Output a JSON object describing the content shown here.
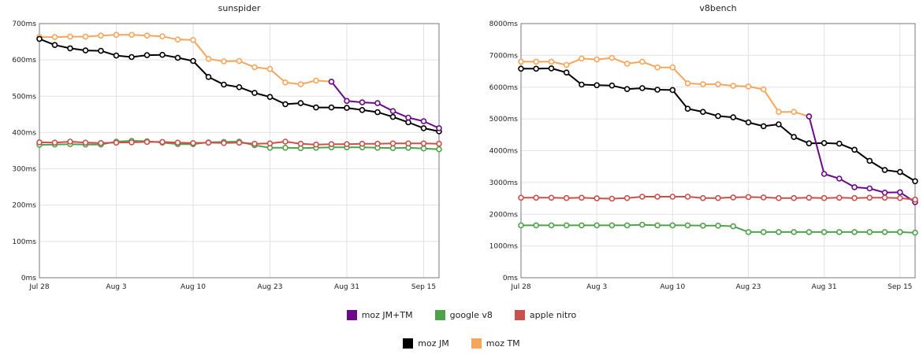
{
  "chart_data": [
    {
      "type": "line",
      "title": "sunspider",
      "xlabel": "",
      "ylabel": "",
      "ylim": [
        0,
        700
      ],
      "yticks": [
        "0ms",
        "100ms",
        "200ms",
        "300ms",
        "400ms",
        "500ms",
        "600ms",
        "700ms"
      ],
      "xticks": [
        "Jul 28",
        "Aug 3",
        "Aug 10",
        "Aug 23",
        "Aug 31",
        "Sep 15"
      ],
      "xtick_index": [
        0,
        5,
        10,
        15,
        20,
        25
      ],
      "n_points": 27,
      "grid": true,
      "series": [
        {
          "name": "moz TM",
          "color": "#f5a65b",
          "start": 0,
          "values": [
            663,
            663,
            664,
            664,
            667,
            669,
            669,
            667,
            665,
            656,
            655,
            603,
            596,
            597,
            580,
            575,
            538,
            533,
            543,
            540
          ]
        },
        {
          "name": "moz JM",
          "color": "#000000",
          "start": 0,
          "values": [
            658,
            641,
            632,
            626,
            625,
            612,
            608,
            613,
            614,
            606,
            597,
            553,
            532,
            525,
            509,
            498,
            478,
            481,
            469,
            469,
            468,
            462,
            456,
            443,
            428,
            412,
            403
          ]
        },
        {
          "name": "moz JM+TM",
          "color": "#6a0a8a",
          "start": 19,
          "values": [
            540,
            487,
            483,
            481,
            459,
            441,
            431,
            412
          ]
        },
        {
          "name": "google v8",
          "color": "#4ea34a",
          "start": 0,
          "values": [
            366,
            367,
            368,
            367,
            367,
            375,
            377,
            376,
            372,
            368,
            368,
            373,
            374,
            375,
            365,
            358,
            358,
            357,
            358,
            359,
            359,
            359,
            358,
            357,
            358,
            356,
            354
          ]
        },
        {
          "name": "apple nitro",
          "color": "#c9504c",
          "start": 0,
          "values": [
            373,
            372,
            375,
            372,
            371,
            372,
            373,
            374,
            374,
            372,
            371,
            372,
            371,
            372,
            369,
            370,
            375,
            369,
            367,
            368,
            368,
            369,
            369,
            370,
            370,
            370,
            369
          ]
        }
      ]
    },
    {
      "type": "line",
      "title": "v8bench",
      "xlabel": "",
      "ylabel": "",
      "ylim": [
        0,
        8000
      ],
      "yticks": [
        "0ms",
        "1000ms",
        "2000ms",
        "3000ms",
        "4000ms",
        "5000ms",
        "6000ms",
        "7000ms",
        "8000ms"
      ],
      "xticks": [
        "Jul 28",
        "Aug 3",
        "Aug 10",
        "Aug 23",
        "Aug 31",
        "Sep 15"
      ],
      "xtick_index": [
        0,
        5,
        10,
        15,
        20,
        25
      ],
      "n_points": 27,
      "grid": true,
      "series": [
        {
          "name": "moz TM",
          "color": "#f5a65b",
          "start": 0,
          "values": [
            6800,
            6800,
            6800,
            6700,
            6900,
            6870,
            6920,
            6740,
            6800,
            6620,
            6620,
            6120,
            6090,
            6090,
            6040,
            6020,
            5930,
            5220,
            5220,
            5080
          ]
        },
        {
          "name": "moz JM",
          "color": "#000000",
          "start": 0,
          "values": [
            6580,
            6580,
            6590,
            6460,
            6080,
            6060,
            6050,
            5940,
            5970,
            5920,
            5910,
            5320,
            5220,
            5090,
            5050,
            4890,
            4770,
            4830,
            4430,
            4230,
            4240,
            4220,
            4030,
            3680,
            3390,
            3330,
            3040
          ]
        },
        {
          "name": "moz JM+TM",
          "color": "#6a0a8a",
          "start": 19,
          "values": [
            5080,
            3270,
            3120,
            2850,
            2810,
            2680,
            2690,
            2380
          ]
        },
        {
          "name": "google v8",
          "color": "#4ea34a",
          "start": 0,
          "values": [
            1650,
            1650,
            1650,
            1650,
            1650,
            1650,
            1650,
            1650,
            1670,
            1650,
            1650,
            1650,
            1640,
            1640,
            1620,
            1440,
            1440,
            1440,
            1440,
            1440,
            1440,
            1440,
            1440,
            1440,
            1440,
            1440,
            1420
          ]
        },
        {
          "name": "apple nitro",
          "color": "#c9504c",
          "start": 0,
          "values": [
            2520,
            2520,
            2520,
            2510,
            2520,
            2500,
            2490,
            2510,
            2550,
            2550,
            2550,
            2550,
            2510,
            2510,
            2530,
            2540,
            2530,
            2510,
            2510,
            2520,
            2510,
            2520,
            2510,
            2520,
            2520,
            2510,
            2460
          ]
        }
      ]
    }
  ],
  "legend": {
    "row1": [
      {
        "label": "moz JM+TM",
        "color": "#6a0a8a"
      },
      {
        "label": "google v8",
        "color": "#4ea34a"
      },
      {
        "label": "apple nitro",
        "color": "#c9504c"
      }
    ],
    "row2": [
      {
        "label": "moz JM",
        "color": "#000000"
      },
      {
        "label": "moz TM",
        "color": "#f5a65b"
      }
    ]
  }
}
